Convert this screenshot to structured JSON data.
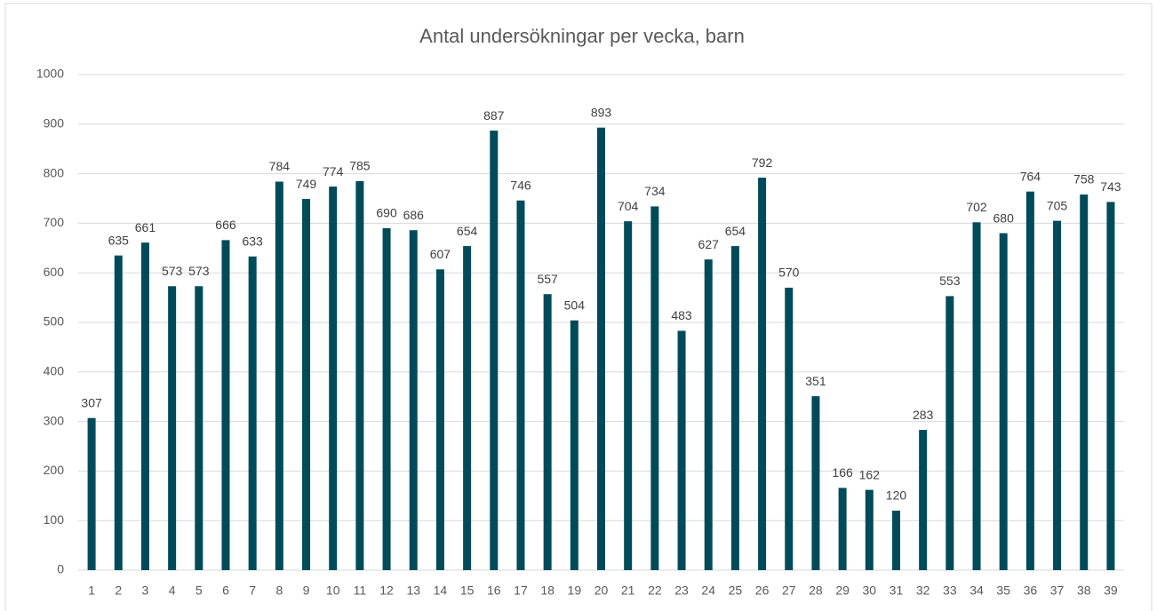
{
  "chart_data": {
    "type": "bar",
    "title": "Antal undersökningar per vecka, barn",
    "categories": [
      "1",
      "2",
      "3",
      "4",
      "5",
      "6",
      "7",
      "8",
      "9",
      "10",
      "11",
      "12",
      "13",
      "14",
      "15",
      "16",
      "17",
      "18",
      "19",
      "20",
      "21",
      "22",
      "23",
      "24",
      "25",
      "26",
      "27",
      "28",
      "29",
      "30",
      "31",
      "32",
      "33",
      "34",
      "35",
      "36",
      "37",
      "38",
      "39"
    ],
    "values": [
      307,
      635,
      661,
      573,
      573,
      666,
      633,
      784,
      749,
      774,
      785,
      690,
      686,
      607,
      654,
      887,
      746,
      557,
      504,
      893,
      704,
      734,
      483,
      627,
      654,
      792,
      570,
      351,
      166,
      162,
      120,
      283,
      553,
      702,
      680,
      764,
      705,
      758,
      743
    ],
    "color": "#004b5a",
    "ylim": [
      0,
      1000
    ],
    "yticks": [
      0,
      100,
      200,
      300,
      400,
      500,
      600,
      700,
      800,
      900,
      1000
    ],
    "grid": true
  }
}
